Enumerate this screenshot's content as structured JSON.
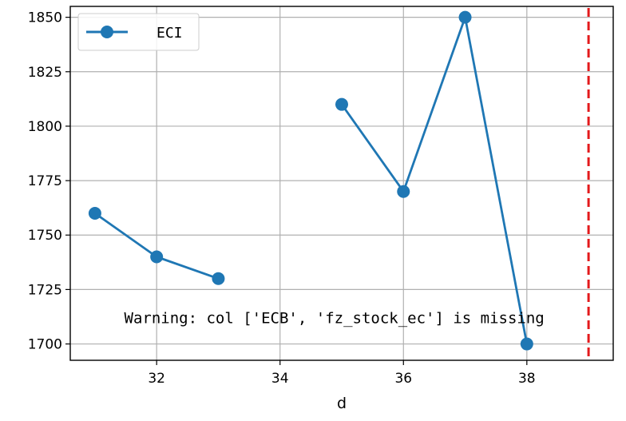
{
  "chart_data": {
    "type": "line",
    "title": "",
    "xlabel": "d",
    "ylabel": "",
    "xlim": [
      30.6,
      39.4
    ],
    "ylim": [
      1692.5,
      1855
    ],
    "xticks": [
      32,
      34,
      36,
      38
    ],
    "yticks": [
      1700,
      1725,
      1750,
      1775,
      1800,
      1825,
      1850
    ],
    "grid": true,
    "legend_position": "top-left",
    "series": [
      {
        "name": "ECI",
        "color": "#1f77b4",
        "marker": "circle",
        "segments": [
          [
            {
              "x": 31,
              "y": 1760
            },
            {
              "x": 32,
              "y": 1740
            },
            {
              "x": 33,
              "y": 1730
            }
          ],
          [
            {
              "x": 35,
              "y": 1810
            },
            {
              "x": 36,
              "y": 1770
            },
            {
              "x": 37,
              "y": 1850
            },
            {
              "x": 38,
              "y": 1700
            }
          ]
        ]
      }
    ],
    "reference_line": {
      "orientation": "vertical",
      "x": 39,
      "color": "#e31a1c",
      "style": "dashed"
    },
    "annotation": {
      "text": "Warning: col ['ECB', 'fz_stock_ec'] is missing",
      "x": 31.5,
      "y": 1710
    }
  }
}
